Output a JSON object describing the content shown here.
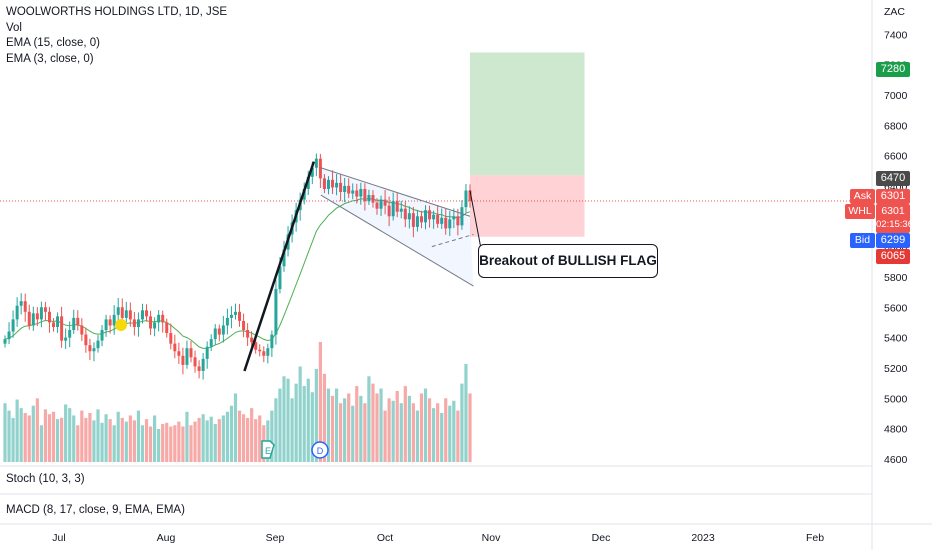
{
  "legend": {
    "symbol": "WOOLWORTHS HOLDINGS LTD, 1D, JSE",
    "vol": "Vol",
    "ema1": "EMA (15, close, 0)",
    "ema2": "EMA (3, close, 0)"
  },
  "currency": "ZAC",
  "panes": {
    "stoch": "Stoch (10, 3, 3)",
    "macd": "MACD (8, 17, close, 9, EMA, EMA)"
  },
  "annotation": "Breakout of BULLISH FLAG",
  "tags": {
    "target": "7280",
    "high": "6470",
    "last": "6301",
    "bid": "6299",
    "stop": "6065",
    "countdown": "02:15:36",
    "ask_label": "Ask",
    "symbol_label": "WHL",
    "bid_label": "Bid"
  },
  "markers": {
    "earnings": "E",
    "dividend": "D"
  },
  "colors": {
    "up": "#26a69a",
    "down": "#ef5350",
    "ema": "#4caf50",
    "target_zone": "#c8e6c9",
    "stop_zone": "#ffcdd2"
  },
  "chart_data": {
    "type": "candlestick",
    "title": "WOOLWORTHS HOLDINGS LTD, 1D, JSE",
    "y_unit": "ZAC",
    "ylim": [
      4560,
      7560
    ],
    "y_ticks": [
      4600,
      4800,
      5000,
      5200,
      5400,
      5600,
      5800,
      6000,
      6200,
      6400,
      6600,
      6800,
      7000,
      7200,
      7400
    ],
    "x_ticks": [
      "Jul",
      "Aug",
      "Sep",
      "Oct",
      "Nov",
      "Dec",
      "2023",
      "Feb"
    ],
    "date_start": "2022-06-15",
    "date_end": "2022-10-27",
    "closes": [
      5390,
      5440,
      5520,
      5610,
      5640,
      5570,
      5480,
      5560,
      5520,
      5600,
      5570,
      5500,
      5470,
      5540,
      5380,
      5400,
      5450,
      5530,
      5480,
      5420,
      5350,
      5310,
      5330,
      5380,
      5450,
      5520,
      5480,
      5550,
      5600,
      5530,
      5580,
      5520,
      5470,
      5520,
      5580,
      5540,
      5460,
      5500,
      5550,
      5500,
      5430,
      5360,
      5310,
      5280,
      5220,
      5330,
      5270,
      5210,
      5180,
      5260,
      5340,
      5390,
      5460,
      5420,
      5480,
      5530,
      5550,
      5570,
      5510,
      5450,
      5400,
      5370,
      5320,
      5310,
      5280,
      5330,
      5420,
      5720,
      5870,
      5980,
      6080,
      6160,
      6240,
      6310,
      6380,
      6460,
      6520,
      6580,
      6450,
      6380,
      6440,
      6390,
      6420,
      6360,
      6400,
      6350,
      6370,
      6330,
      6380,
      6300,
      6340,
      6290,
      6250,
      6310,
      6270,
      6200,
      6300,
      6230,
      6250,
      6180,
      6220,
      6130,
      6200,
      6160,
      6240,
      6180,
      6210,
      6150,
      6190,
      6120,
      6180,
      6200,
      6140,
      6260,
      6370,
      6301
    ],
    "ema_15": [
      5390,
      5396,
      5412,
      5437,
      5462,
      5476,
      5477,
      5487,
      5491,
      5505,
      5513,
      5511,
      5506,
      5511,
      5494,
      5482,
      5478,
      5485,
      5484,
      5476,
      5460,
      5442,
      5428,
      5422,
      5425,
      5437,
      5442,
      5456,
      5474,
      5481,
      5493,
      5497,
      5494,
      5498,
      5508,
      5512,
      5505,
      5504,
      5510,
      5509,
      5499,
      5482,
      5460,
      5437,
      5410,
      5400,
      5384,
      5362,
      5339,
      5329,
      5330,
      5337,
      5352,
      5361,
      5376,
      5395,
      5414,
      5434,
      5443,
      5444,
      5439,
      5430,
      5416,
      5403,
      5388,
      5381,
      5386,
      5427,
      5482,
      5545,
      5612,
      5680,
      5750,
      5820,
      5890,
      5962,
      6031,
      6100,
      6143,
      6173,
      6207,
      6230,
      6254,
      6267,
      6284,
      6292,
      6302,
      6306,
      6315,
      6313,
      6316,
      6313,
      6305,
      6306,
      6302,
      6289,
      6290,
      6282,
      6278,
      6265,
      6260,
      6244,
      6238,
      6228,
      6230,
      6224,
      6222,
      6213,
      6210,
      6199,
      6196,
      6196,
      6189,
      6198,
      6220,
      6230
    ],
    "volume": [
      480,
      420,
      360,
      510,
      440,
      400,
      380,
      460,
      520,
      300,
      430,
      390,
      410,
      350,
      360,
      470,
      440,
      380,
      300,
      420,
      360,
      400,
      340,
      430,
      320,
      390,
      350,
      300,
      410,
      360,
      330,
      380,
      340,
      420,
      300,
      350,
      290,
      380,
      270,
      310,
      320,
      290,
      300,
      330,
      290,
      410,
      300,
      330,
      360,
      390,
      340,
      370,
      310,
      350,
      380,
      410,
      460,
      560,
      420,
      390,
      360,
      440,
      350,
      380,
      300,
      340,
      420,
      520,
      600,
      700,
      680,
      520,
      640,
      780,
      620,
      680,
      570,
      760,
      980,
      720,
      600,
      540,
      600,
      480,
      520,
      560,
      460,
      620,
      540,
      480,
      700,
      640,
      560,
      600,
      420,
      520,
      500,
      580,
      480,
      620,
      540,
      480,
      420,
      560,
      600,
      520,
      440,
      480,
      400,
      520,
      460,
      500,
      420,
      640,
      800,
      560
    ],
    "trendlines": [
      {
        "from": [
          "2022-08-23",
          5180
        ],
        "to": [
          "2022-09-12",
          6560
        ]
      },
      {
        "from": [
          "2022-09-14",
          6520
        ],
        "to": [
          "2022-10-27",
          6200
        ]
      },
      {
        "from": [
          "2022-09-14",
          6340
        ],
        "to": [
          "2022-10-28",
          5740
        ]
      },
      {
        "from": [
          "2022-10-16",
          6000
        ],
        "to": [
          "2022-10-28",
          6080
        ]
      }
    ],
    "position": {
      "entry_date": "2022-10-27",
      "end_date": "2022-11-29",
      "entry_price": 6470,
      "target": 7280,
      "stop": 6065
    }
  }
}
